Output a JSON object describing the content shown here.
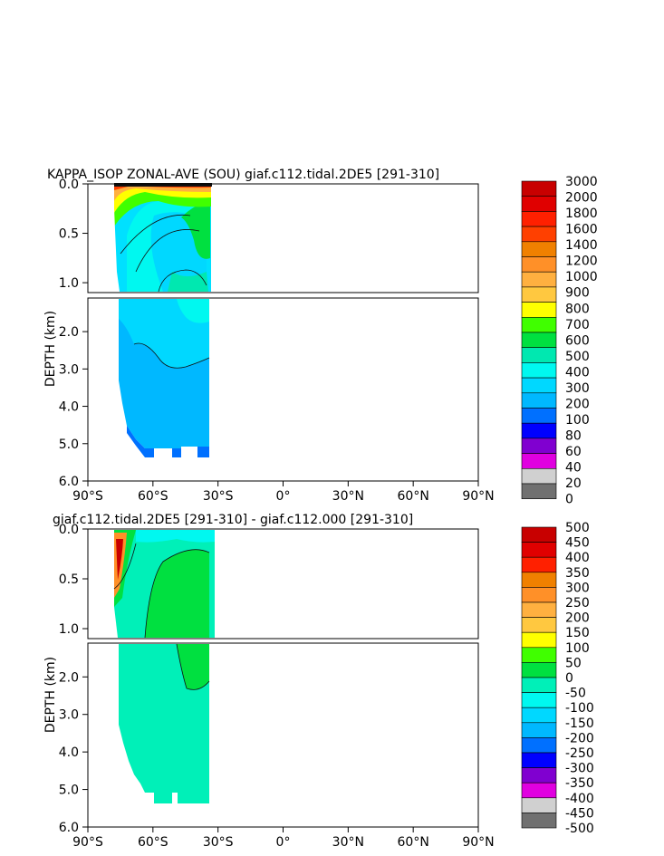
{
  "chart_data": [
    {
      "type": "heatmap",
      "title": "KAPPA_ISOP ZONAL-AVE (SOU) giaf.c112.tidal.2DE5 [291-310]",
      "ylabel": "DEPTH (km)",
      "xlabel": "",
      "x_ticks": [
        "90°S",
        "60°S",
        "30°S",
        "0°",
        "30°N",
        "60°N",
        "90°N"
      ],
      "y_ticks_upper": [
        "0.0",
        "0.5",
        "1.0"
      ],
      "y_ticks_lower": [
        "2.0",
        "3.0",
        "4.0",
        "5.0",
        "6.0"
      ],
      "xlim": [
        -90,
        90
      ],
      "ylim_km": [
        6.0,
        0.0
      ],
      "axis_break_km": 1.1,
      "colorbar": {
        "labels": [
          "3000",
          "2000",
          "1800",
          "1600",
          "1400",
          "1200",
          "1000",
          "900",
          "800",
          "700",
          "600",
          "500",
          "400",
          "300",
          "200",
          "100",
          "80",
          "60",
          "40",
          "20",
          "0"
        ],
        "colors": [
          "#c80000",
          "#e00000",
          "#ff2000",
          "#ff4000",
          "#f08000",
          "#ff9028",
          "#ffb040",
          "#ffc840",
          "#ffff00",
          "#40ff00",
          "#00e040",
          "#00e8b0",
          "#00f8f0",
          "#00d8ff",
          "#00b8ff",
          "#0070ff",
          "#0000ff",
          "#8000d0",
          "#e000e0",
          "#d0d0d0",
          "#707070"
        ]
      },
      "regions": [
        {
          "label": "300-400",
          "color": "#00d8ff"
        },
        {
          "label": "200-300",
          "color": "#00b8ff"
        },
        {
          "label": "100-200",
          "color": "#0070ff"
        },
        {
          "label": "600-700",
          "color": "#00e040"
        },
        {
          "label": "700-800",
          "color": "#40ff00"
        },
        {
          "label": "800-900",
          "color": "#ffff00"
        },
        {
          "label": "1000-1200",
          "color": "#ffb040"
        },
        {
          "label": "1600-1800",
          "color": "#ff4000"
        }
      ]
    },
    {
      "type": "heatmap",
      "title": "giaf.c112.tidal.2DE5 [291-310] - giaf.c112.000 [291-310]",
      "ylabel": "DEPTH (km)",
      "xlabel": "",
      "x_ticks": [
        "90°S",
        "60°S",
        "30°S",
        "0°",
        "30°N",
        "60°N",
        "90°N"
      ],
      "y_ticks_upper": [
        "0.0",
        "0.5",
        "1.0"
      ],
      "y_ticks_lower": [
        "2.0",
        "3.0",
        "4.0",
        "5.0",
        "6.0"
      ],
      "xlim": [
        -90,
        90
      ],
      "ylim_km": [
        6.0,
        0.0
      ],
      "axis_break_km": 1.1,
      "colorbar": {
        "labels": [
          "500",
          "450",
          "400",
          "350",
          "300",
          "250",
          "200",
          "150",
          "100",
          "50",
          "0",
          "-50",
          "-100",
          "-150",
          "-200",
          "-250",
          "-300",
          "-350",
          "-400",
          "-450",
          "-500"
        ],
        "colors": [
          "#c80000",
          "#e00000",
          "#ff2000",
          "#f08000",
          "#ff9028",
          "#ffb040",
          "#ffc840",
          "#ffff00",
          "#40ff00",
          "#00e040",
          "#00f0b8",
          "#00f8f0",
          "#00d8ff",
          "#00b8ff",
          "#0070ff",
          "#0000ff",
          "#8000d0",
          "#e000e0",
          "#d0d0d0",
          "#707070"
        ]
      },
      "regions": [
        {
          "label": "-50-0",
          "color": "#00f0b8"
        },
        {
          "label": "0-50",
          "color": "#00e040"
        },
        {
          "label": "50-100",
          "color": "#40ff00"
        },
        {
          "label": "200-250",
          "color": "#ff9028"
        }
      ]
    }
  ]
}
